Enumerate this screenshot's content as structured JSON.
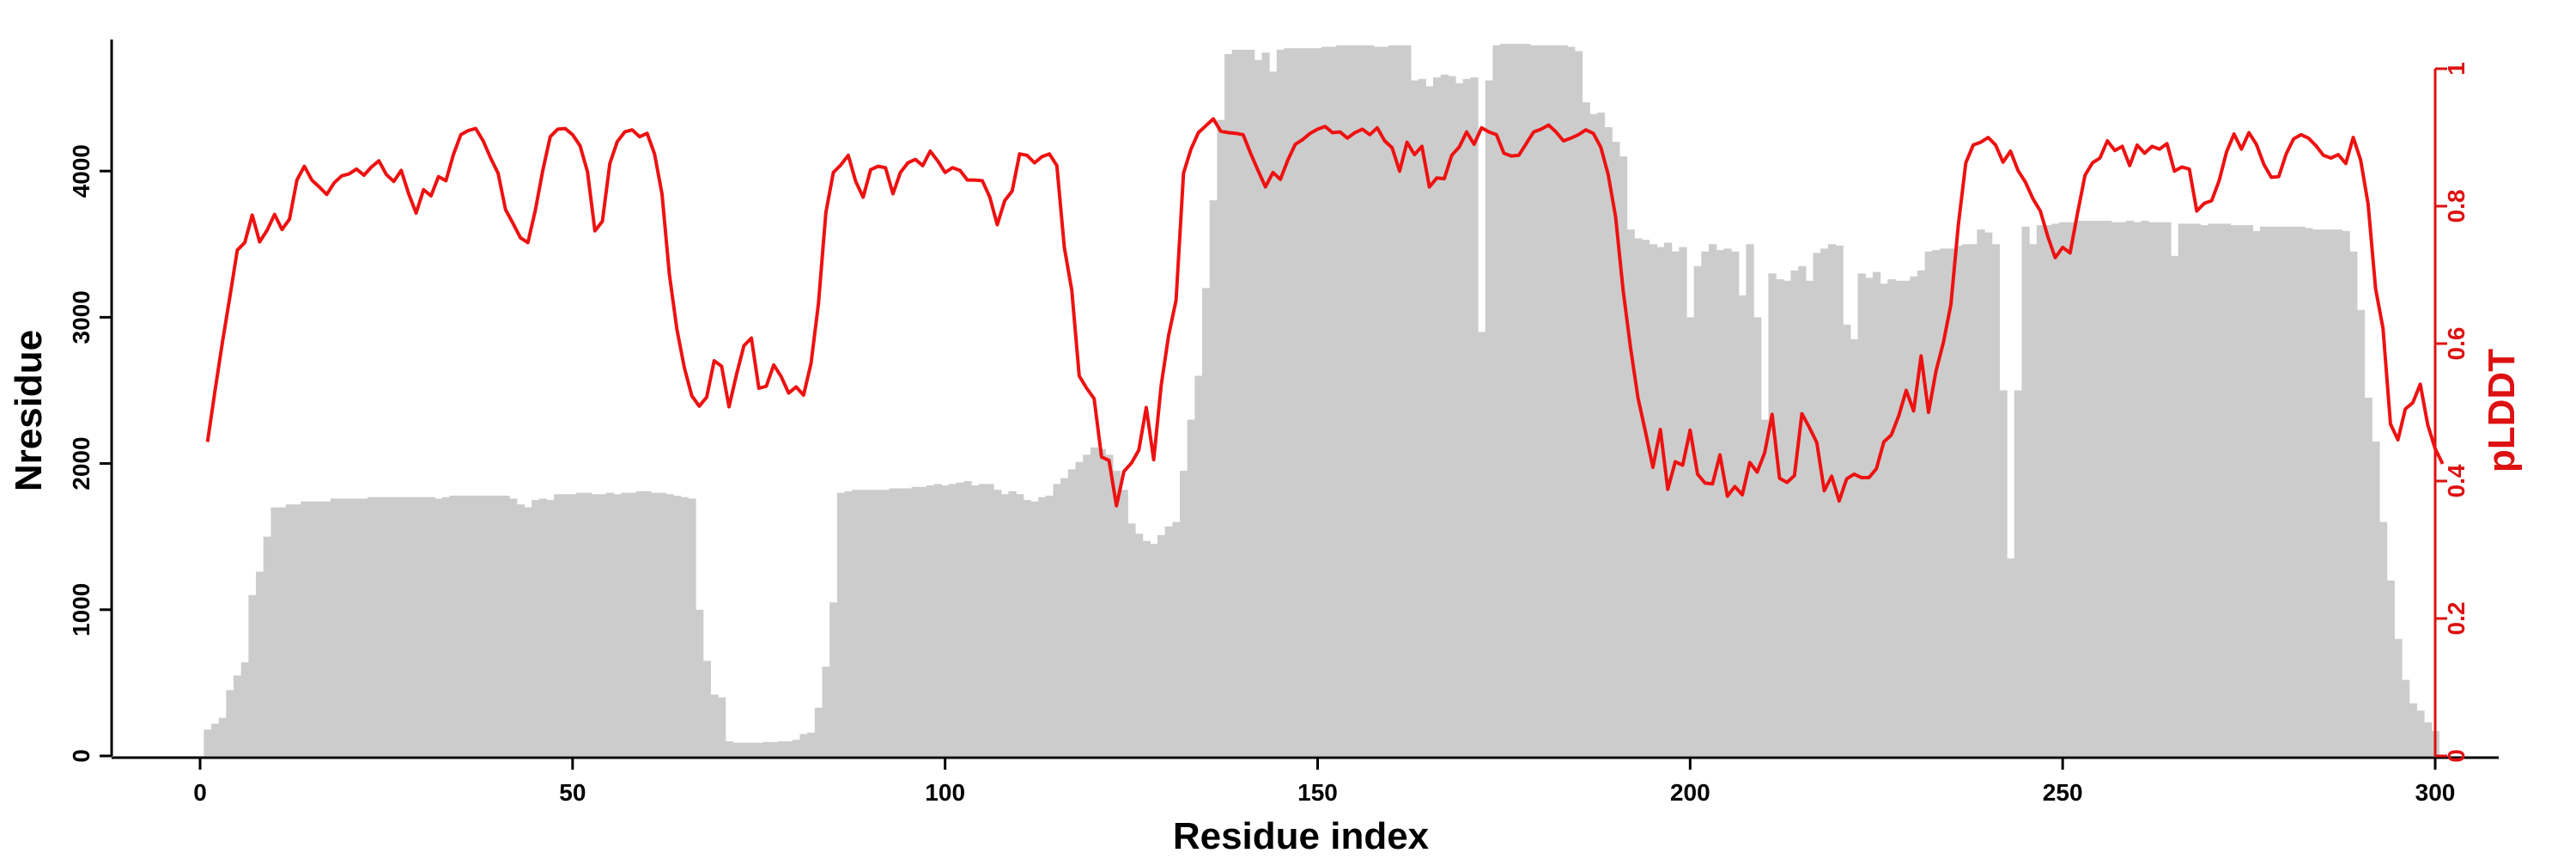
{
  "chart_data": {
    "type": "bar+line",
    "title": "",
    "xlabel": "Residue index",
    "ylabel_left": "Nresidue",
    "ylabel_right": "pLDDT",
    "xlim": [
      -12,
      316
    ],
    "ylim_left": [
      0,
      4900
    ],
    "ylim_right": [
      0,
      1
    ],
    "x_ticks": [
      0,
      50,
      100,
      150,
      200,
      250,
      300
    ],
    "y_left_ticks": [
      0,
      1000,
      2000,
      3000,
      4000
    ],
    "y_right_ticks": [
      0,
      0.2,
      0.4,
      0.6,
      0.8,
      1
    ],
    "bar_color": "#cccccc",
    "line_color": "#ee1111",
    "axis_right_color": "#dd1111",
    "series": [
      {
        "name": "Nresidue",
        "kind": "bar",
        "x_start": 1,
        "values": [
          180,
          220,
          260,
          450,
          550,
          640,
          1100,
          1260,
          1500,
          1700,
          1700,
          1720,
          1720,
          1740,
          1740,
          1740,
          1740,
          1760,
          1760,
          1760,
          1760,
          1760,
          1770,
          1770,
          1770,
          1770,
          1770,
          1770,
          1770,
          1770,
          1770,
          1760,
          1770,
          1780,
          1780,
          1780,
          1780,
          1780,
          1780,
          1780,
          1780,
          1760,
          1720,
          1700,
          1750,
          1760,
          1750,
          1790,
          1790,
          1790,
          1800,
          1800,
          1790,
          1790,
          1800,
          1790,
          1800,
          1800,
          1810,
          1810,
          1800,
          1800,
          1790,
          1780,
          1770,
          1760,
          1000,
          650,
          420,
          400,
          100,
          90,
          90,
          90,
          90,
          95,
          95,
          100,
          100,
          110,
          150,
          160,
          330,
          610,
          1050,
          1800,
          1810,
          1820,
          1820,
          1820,
          1820,
          1820,
          1830,
          1830,
          1830,
          1840,
          1840,
          1850,
          1860,
          1850,
          1860,
          1870,
          1880,
          1850,
          1860,
          1860,
          1820,
          1790,
          1810,
          1790,
          1750,
          1740,
          1770,
          1780,
          1860,
          1900,
          1960,
          2010,
          2060,
          2110,
          2100,
          2060,
          1950,
          1820,
          1590,
          1520,
          1470,
          1450,
          1510,
          1570,
          1600,
          1950,
          2300,
          2600,
          3200,
          3800,
          4350,
          4800,
          4830,
          4830,
          4830,
          4760,
          4810,
          4680,
          4830,
          4840,
          4840,
          4840,
          4840,
          4840,
          4850,
          4850,
          4860,
          4860,
          4860,
          4860,
          4860,
          4850,
          4850,
          4860,
          4860,
          4860,
          4620,
          4630,
          4580,
          4640,
          4660,
          4650,
          4600,
          4630,
          4640,
          2900,
          4620,
          4860,
          4870,
          4870,
          4870,
          4870,
          4860,
          4860,
          4860,
          4860,
          4860,
          4850,
          4820,
          4470,
          4390,
          4400,
          4300,
          4200,
          4100,
          3600,
          3540,
          3530,
          3500,
          3480,
          3510,
          3450,
          3480,
          3000,
          3350,
          3450,
          3500,
          3460,
          3470,
          3450,
          3150,
          3500,
          3000,
          2300,
          3300,
          3260,
          3250,
          3320,
          3350,
          3250,
          3440,
          3470,
          3500,
          3490,
          2950,
          2850,
          3300,
          3270,
          3310,
          3230,
          3260,
          3250,
          3250,
          3280,
          3320,
          3450,
          3460,
          3470,
          3470,
          3490,
          3500,
          3500,
          3600,
          3580,
          3500,
          2500,
          1350,
          2500,
          3620,
          3500,
          3630,
          3630,
          3640,
          3650,
          3650,
          3660,
          3660,
          3660,
          3660,
          3660,
          3650,
          3650,
          3660,
          3650,
          3660,
          3650,
          3650,
          3650,
          3420,
          3640,
          3640,
          3640,
          3630,
          3640,
          3640,
          3640,
          3630,
          3630,
          3630,
          3590,
          3620,
          3620,
          3620,
          3620,
          3620,
          3620,
          3610,
          3600,
          3600,
          3600,
          3600,
          3590,
          3450,
          3050,
          2450,
          2150,
          1600,
          1200,
          800,
          520,
          360,
          310,
          230,
          170
        ]
      },
      {
        "name": "pLDDT",
        "kind": "line",
        "x_start": 1,
        "values": [
          0.457,
          0.531,
          0.602,
          0.668,
          0.736,
          0.747,
          0.787,
          0.748,
          0.765,
          0.788,
          0.766,
          0.781,
          0.838,
          0.858,
          0.838,
          0.828,
          0.817,
          0.834,
          0.844,
          0.847,
          0.854,
          0.845,
          0.857,
          0.866,
          0.846,
          0.836,
          0.852,
          0.818,
          0.79,
          0.824,
          0.815,
          0.843,
          0.837,
          0.875,
          0.904,
          0.91,
          0.913,
          0.895,
          0.87,
          0.848,
          0.795,
          0.775,
          0.754,
          0.747,
          0.794,
          0.852,
          0.901,
          0.912,
          0.913,
          0.904,
          0.888,
          0.85,
          0.764,
          0.778,
          0.862,
          0.894,
          0.908,
          0.911,
          0.901,
          0.906,
          0.876,
          0.818,
          0.7,
          0.621,
          0.565,
          0.524,
          0.509,
          0.522,
          0.575,
          0.567,
          0.508,
          0.555,
          0.597,
          0.608,
          0.535,
          0.538,
          0.569,
          0.552,
          0.528,
          0.537,
          0.525,
          0.571,
          0.658,
          0.791,
          0.849,
          0.86,
          0.874,
          0.836,
          0.813,
          0.853,
          0.858,
          0.856,
          0.818,
          0.849,
          0.863,
          0.868,
          0.859,
          0.88,
          0.866,
          0.849,
          0.856,
          0.852,
          0.838,
          0.838,
          0.837,
          0.813,
          0.773,
          0.808,
          0.822,
          0.876,
          0.874,
          0.863,
          0.872,
          0.876,
          0.859,
          0.74,
          0.678,
          0.553,
          0.535,
          0.52,
          0.435,
          0.43,
          0.364,
          0.414,
          0.426,
          0.445,
          0.507,
          0.431,
          0.539,
          0.612,
          0.663,
          0.848,
          0.883,
          0.907,
          0.917,
          0.927,
          0.909,
          0.907,
          0.906,
          0.904,
          0.877,
          0.852,
          0.828,
          0.849,
          0.839,
          0.867,
          0.89,
          0.897,
          0.906,
          0.912,
          0.916,
          0.907,
          0.908,
          0.899,
          0.907,
          0.912,
          0.904,
          0.914,
          0.895,
          0.885,
          0.851,
          0.893,
          0.875,
          0.887,
          0.828,
          0.841,
          0.84,
          0.874,
          0.886,
          0.908,
          0.89,
          0.914,
          0.908,
          0.904,
          0.877,
          0.873,
          0.874,
          0.891,
          0.908,
          0.912,
          0.918,
          0.908,
          0.895,
          0.899,
          0.904,
          0.911,
          0.906,
          0.886,
          0.846,
          0.784,
          0.678,
          0.594,
          0.521,
          0.472,
          0.42,
          0.475,
          0.388,
          0.428,
          0.423,
          0.474,
          0.41,
          0.397,
          0.396,
          0.438,
          0.378,
          0.392,
          0.38,
          0.427,
          0.413,
          0.441,
          0.497,
          0.404,
          0.398,
          0.408,
          0.498,
          0.478,
          0.456,
          0.386,
          0.407,
          0.371,
          0.403,
          0.41,
          0.405,
          0.405,
          0.418,
          0.457,
          0.467,
          0.495,
          0.532,
          0.502,
          0.582,
          0.5,
          0.56,
          0.602,
          0.657,
          0.773,
          0.863,
          0.889,
          0.893,
          0.9,
          0.889,
          0.864,
          0.88,
          0.852,
          0.835,
          0.811,
          0.793,
          0.756,
          0.725,
          0.74,
          0.732,
          0.79,
          0.845,
          0.863,
          0.87,
          0.895,
          0.881,
          0.887,
          0.859,
          0.889,
          0.877,
          0.887,
          0.883,
          0.891,
          0.851,
          0.857,
          0.854,
          0.793,
          0.804,
          0.808,
          0.837,
          0.879,
          0.905,
          0.883,
          0.907,
          0.89,
          0.861,
          0.842,
          0.843,
          0.876,
          0.898,
          0.904,
          0.899,
          0.888,
          0.874,
          0.87,
          0.875,
          0.862,
          0.9,
          0.867,
          0.803,
          0.68,
          0.622,
          0.483,
          0.46,
          0.505,
          0.514,
          0.541,
          0.482,
          0.447,
          0.425
        ]
      }
    ]
  }
}
